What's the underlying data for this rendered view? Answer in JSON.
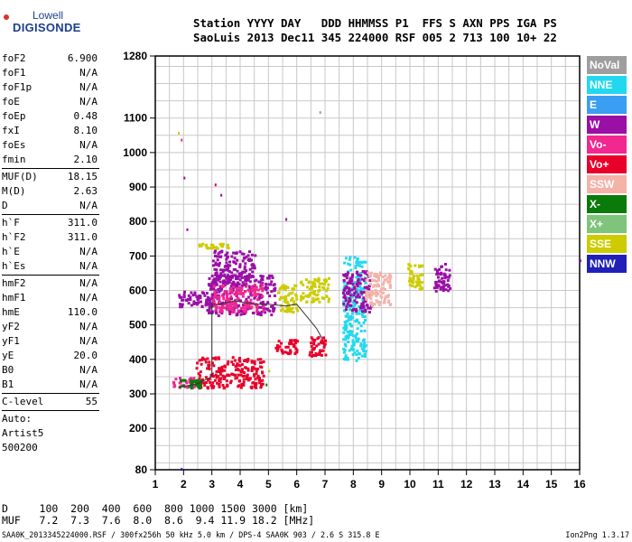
{
  "logo": {
    "line1": "Lowell",
    "line2": "DIGISONDE"
  },
  "header": {
    "line1": "Station YYYY DAY   DDD HHMMSS P1  FFS S AXN PPS IGA PS",
    "line2": "SaoLuis 2013 Dec11 345 224000 RSF 005 2 713 100 10+ 22"
  },
  "params": [
    [
      {
        "k": "foF2",
        "v": "6.900"
      },
      {
        "k": "foF1",
        "v": "N/A"
      },
      {
        "k": "foF1p",
        "v": "N/A"
      },
      {
        "k": "foE",
        "v": "N/A"
      },
      {
        "k": "foEp",
        "v": "0.48"
      },
      {
        "k": "fxI",
        "v": "8.10"
      },
      {
        "k": "foEs",
        "v": "N/A"
      },
      {
        "k": "fmin",
        "v": "2.10"
      }
    ],
    [
      {
        "k": "MUF(D)",
        "v": "18.15"
      },
      {
        "k": "M(D)",
        "v": "2.63"
      },
      {
        "k": "D",
        "v": "N/A"
      }
    ],
    [
      {
        "k": "h`F",
        "v": "311.0"
      },
      {
        "k": "h`F2",
        "v": "311.0"
      },
      {
        "k": "h`E",
        "v": "N/A"
      },
      {
        "k": "h`Es",
        "v": "N/A"
      }
    ],
    [
      {
        "k": "hmF2",
        "v": "N/A"
      },
      {
        "k": "hmF1",
        "v": "N/A"
      },
      {
        "k": "hmE",
        "v": "110.0"
      },
      {
        "k": "yF2",
        "v": "N/A"
      },
      {
        "k": "yF1",
        "v": "N/A"
      },
      {
        "k": "yE",
        "v": "20.0"
      },
      {
        "k": "B0",
        "v": "N/A"
      },
      {
        "k": "B1",
        "v": "N/A"
      }
    ],
    [
      {
        "k": "C-level",
        "v": "55"
      }
    ]
  ],
  "auto": {
    "line1": "Auto:",
    "line2": "Artist5",
    "line3": "500200"
  },
  "legend": [
    {
      "label": "NoVal",
      "color": "#9e9e9e"
    },
    {
      "label": "NNE",
      "color": "#22d8f0"
    },
    {
      "label": "E",
      "color": "#3a9ef2"
    },
    {
      "label": "W",
      "color": "#9a0fa6"
    },
    {
      "label": "Vo-",
      "color": "#f0288f"
    },
    {
      "label": "Vo+",
      "color": "#e8002a"
    },
    {
      "label": "SSW",
      "color": "#f4b2a8"
    },
    {
      "label": "X-",
      "color": "#0a7a0a"
    },
    {
      "label": "X+",
      "color": "#7ec47a"
    },
    {
      "label": "SSE",
      "color": "#cccc00"
    },
    {
      "label": "NNW",
      "color": "#2020b8"
    }
  ],
  "bottom": {
    "line1": "D     100  200  400  600  800 1000 1500 3000 [km]",
    "line2": "MUF   7.2  7.3  7.6  8.0  8.6  9.4 11.9 18.2 [MHz]"
  },
  "footer": {
    "left": "SAA0K_2013345224000.RSF / 300fx256h 50 kHz 5.0 km / DPS-4 SAA0K 903 / 2.6 S 315.8 E",
    "right": "Ion2Png 1.3.17"
  },
  "chart_data": {
    "type": "scatter",
    "xlim": [
      1,
      16
    ],
    "ylim": [
      80,
      1280
    ],
    "x_ticks": [
      1,
      2,
      3,
      4,
      5,
      6,
      7,
      8,
      9,
      10,
      11,
      12,
      13,
      14,
      15,
      16
    ],
    "y_ticks": [
      80,
      200,
      300,
      400,
      500,
      600,
      700,
      800,
      900,
      1000,
      1100,
      1280
    ],
    "grid": true,
    "trace": {
      "x": [
        1.9,
        2.5,
        3.0,
        3.0,
        3.0,
        3.3,
        3.8,
        4.5,
        5.0,
        5.6,
        6.0,
        6.4,
        6.7,
        6.9
      ],
      "y": [
        320,
        330,
        350,
        400,
        560,
        560,
        570,
        560,
        560,
        555,
        560,
        520,
        490,
        460
      ]
    },
    "clusters": [
      {
        "x": [
          1.6,
          2.4
        ],
        "y": [
          320,
          350
        ],
        "color": "#f0288f"
      },
      {
        "x": [
          2.4,
          4.8
        ],
        "y": [
          320,
          410
        ],
        "color": "#e8002a"
      },
      {
        "x": [
          1.8,
          2.6
        ],
        "y": [
          320,
          345
        ],
        "color": "#0a7a0a"
      },
      {
        "x": [
          1.8,
          3.0
        ],
        "y": [
          555,
          600
        ],
        "color": "#9a0fa6"
      },
      {
        "x": [
          2.8,
          5.2
        ],
        "y": [
          530,
          650
        ],
        "color": "#9a0fa6"
      },
      {
        "x": [
          3.0,
          4.8
        ],
        "y": [
          540,
          620
        ],
        "color": "#f0288f"
      },
      {
        "x": [
          3.0,
          4.5
        ],
        "y": [
          620,
          720
        ],
        "color": "#9a0fa6"
      },
      {
        "x": [
          2.5,
          3.6
        ],
        "y": [
          725,
          740
        ],
        "color": "#cccc00"
      },
      {
        "x": [
          5.3,
          6.0
        ],
        "y": [
          540,
          620
        ],
        "color": "#cccc00"
      },
      {
        "x": [
          5.2,
          6.0
        ],
        "y": [
          420,
          460
        ],
        "color": "#e8002a"
      },
      {
        "x": [
          6.4,
          7.0
        ],
        "y": [
          410,
          470
        ],
        "color": "#e8002a"
      },
      {
        "x": [
          6.1,
          7.1
        ],
        "y": [
          570,
          640
        ],
        "color": "#cccc00"
      },
      {
        "x": [
          7.6,
          8.4
        ],
        "y": [
          400,
          700
        ],
        "color": "#22d8f0"
      },
      {
        "x": [
          7.6,
          8.6
        ],
        "y": [
          540,
          660
        ],
        "color": "#9a0fa6"
      },
      {
        "x": [
          8.4,
          9.3
        ],
        "y": [
          560,
          660
        ],
        "color": "#f4b2a8"
      },
      {
        "x": [
          9.9,
          10.4
        ],
        "y": [
          600,
          680
        ],
        "color": "#cccc00"
      },
      {
        "x": [
          10.8,
          11.4
        ],
        "y": [
          600,
          680
        ],
        "color": "#9a0fa6"
      }
    ],
    "scattered_points": [
      {
        "x": 1.8,
        "y": 1060,
        "color": "#cccc00"
      },
      {
        "x": 1.9,
        "y": 1040,
        "color": "#f0288f"
      },
      {
        "x": 2.0,
        "y": 930,
        "color": "#9a0fa6"
      },
      {
        "x": 2.1,
        "y": 780,
        "color": "#9a0fa6"
      },
      {
        "x": 1.9,
        "y": 85,
        "color": "#2020b8"
      },
      {
        "x": 3.1,
        "y": 910,
        "color": "#e8002a"
      },
      {
        "x": 3.3,
        "y": 880,
        "color": "#9a0fa6"
      },
      {
        "x": 5.6,
        "y": 810,
        "color": "#9a0fa6"
      },
      {
        "x": 6.8,
        "y": 1120,
        "color": "#9e9e9e"
      },
      {
        "x": 16.0,
        "y": 690,
        "color": "#9a0fa6"
      },
      {
        "x": 4.9,
        "y": 330,
        "color": "#0a7a0a"
      },
      {
        "x": 5.0,
        "y": 370,
        "color": "#cccc00"
      }
    ]
  }
}
